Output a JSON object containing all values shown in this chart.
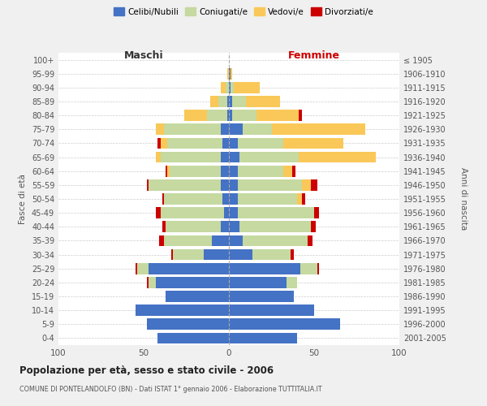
{
  "age_groups": [
    "0-4",
    "5-9",
    "10-14",
    "15-19",
    "20-24",
    "25-29",
    "30-34",
    "35-39",
    "40-44",
    "45-49",
    "50-54",
    "55-59",
    "60-64",
    "65-69",
    "70-74",
    "75-79",
    "80-84",
    "85-89",
    "90-94",
    "95-99",
    "100+"
  ],
  "birth_years": [
    "2001-2005",
    "1996-2000",
    "1991-1995",
    "1986-1990",
    "1981-1985",
    "1976-1980",
    "1971-1975",
    "1966-1970",
    "1961-1965",
    "1956-1960",
    "1951-1955",
    "1946-1950",
    "1941-1945",
    "1936-1940",
    "1931-1935",
    "1926-1930",
    "1921-1925",
    "1916-1920",
    "1911-1915",
    "1906-1910",
    "≤ 1905"
  ],
  "maschi": {
    "celibi": [
      42,
      48,
      55,
      37,
      43,
      47,
      15,
      10,
      5,
      3,
      4,
      5,
      5,
      5,
      4,
      5,
      1,
      1,
      0,
      0,
      0
    ],
    "coniugati": [
      0,
      0,
      0,
      0,
      4,
      7,
      18,
      28,
      32,
      37,
      34,
      42,
      30,
      35,
      32,
      33,
      12,
      5,
      2,
      0,
      0
    ],
    "vedovi": [
      0,
      0,
      0,
      0,
      0,
      0,
      0,
      0,
      0,
      0,
      0,
      0,
      1,
      3,
      4,
      5,
      13,
      5,
      3,
      1,
      0
    ],
    "divorziati": [
      0,
      0,
      0,
      0,
      1,
      1,
      1,
      3,
      2,
      3,
      1,
      1,
      1,
      0,
      2,
      0,
      0,
      0,
      0,
      0,
      0
    ]
  },
  "femmine": {
    "nubili": [
      40,
      65,
      50,
      38,
      34,
      42,
      14,
      8,
      6,
      5,
      5,
      5,
      5,
      6,
      5,
      8,
      2,
      2,
      1,
      1,
      0
    ],
    "coniugate": [
      0,
      0,
      0,
      0,
      6,
      10,
      22,
      38,
      42,
      45,
      35,
      38,
      27,
      35,
      27,
      17,
      14,
      8,
      2,
      0,
      0
    ],
    "vedove": [
      0,
      0,
      0,
      0,
      0,
      0,
      0,
      0,
      0,
      0,
      3,
      5,
      5,
      45,
      35,
      55,
      25,
      20,
      15,
      1,
      0
    ],
    "divorziate": [
      0,
      0,
      0,
      0,
      0,
      1,
      2,
      3,
      3,
      3,
      2,
      4,
      2,
      0,
      0,
      0,
      2,
      0,
      0,
      0,
      0
    ]
  },
  "colors": {
    "celibi": "#4472c4",
    "coniugati": "#c5d9a0",
    "vedovi": "#fac858",
    "divorziati": "#cc0000"
  },
  "legend_labels": [
    "Celibi/Nubili",
    "Coniugati/e",
    "Vedovi/e",
    "Divorziati/e"
  ],
  "title": "Popolazione per età, sesso e stato civile - 2006",
  "subtitle": "COMUNE DI PONTELANDOLFO (BN) - Dati ISTAT 1° gennaio 2006 - Elaborazione TUTTITALIA.IT",
  "xlabel_maschi": "Maschi",
  "xlabel_femmine": "Femmine",
  "ylabel_left": "Fasce di età",
  "ylabel_right": "Anni di nascita",
  "xlim": 100,
  "bg_color": "#f0f0f0",
  "plot_bg": "#ffffff",
  "grid_color": "#cccccc"
}
